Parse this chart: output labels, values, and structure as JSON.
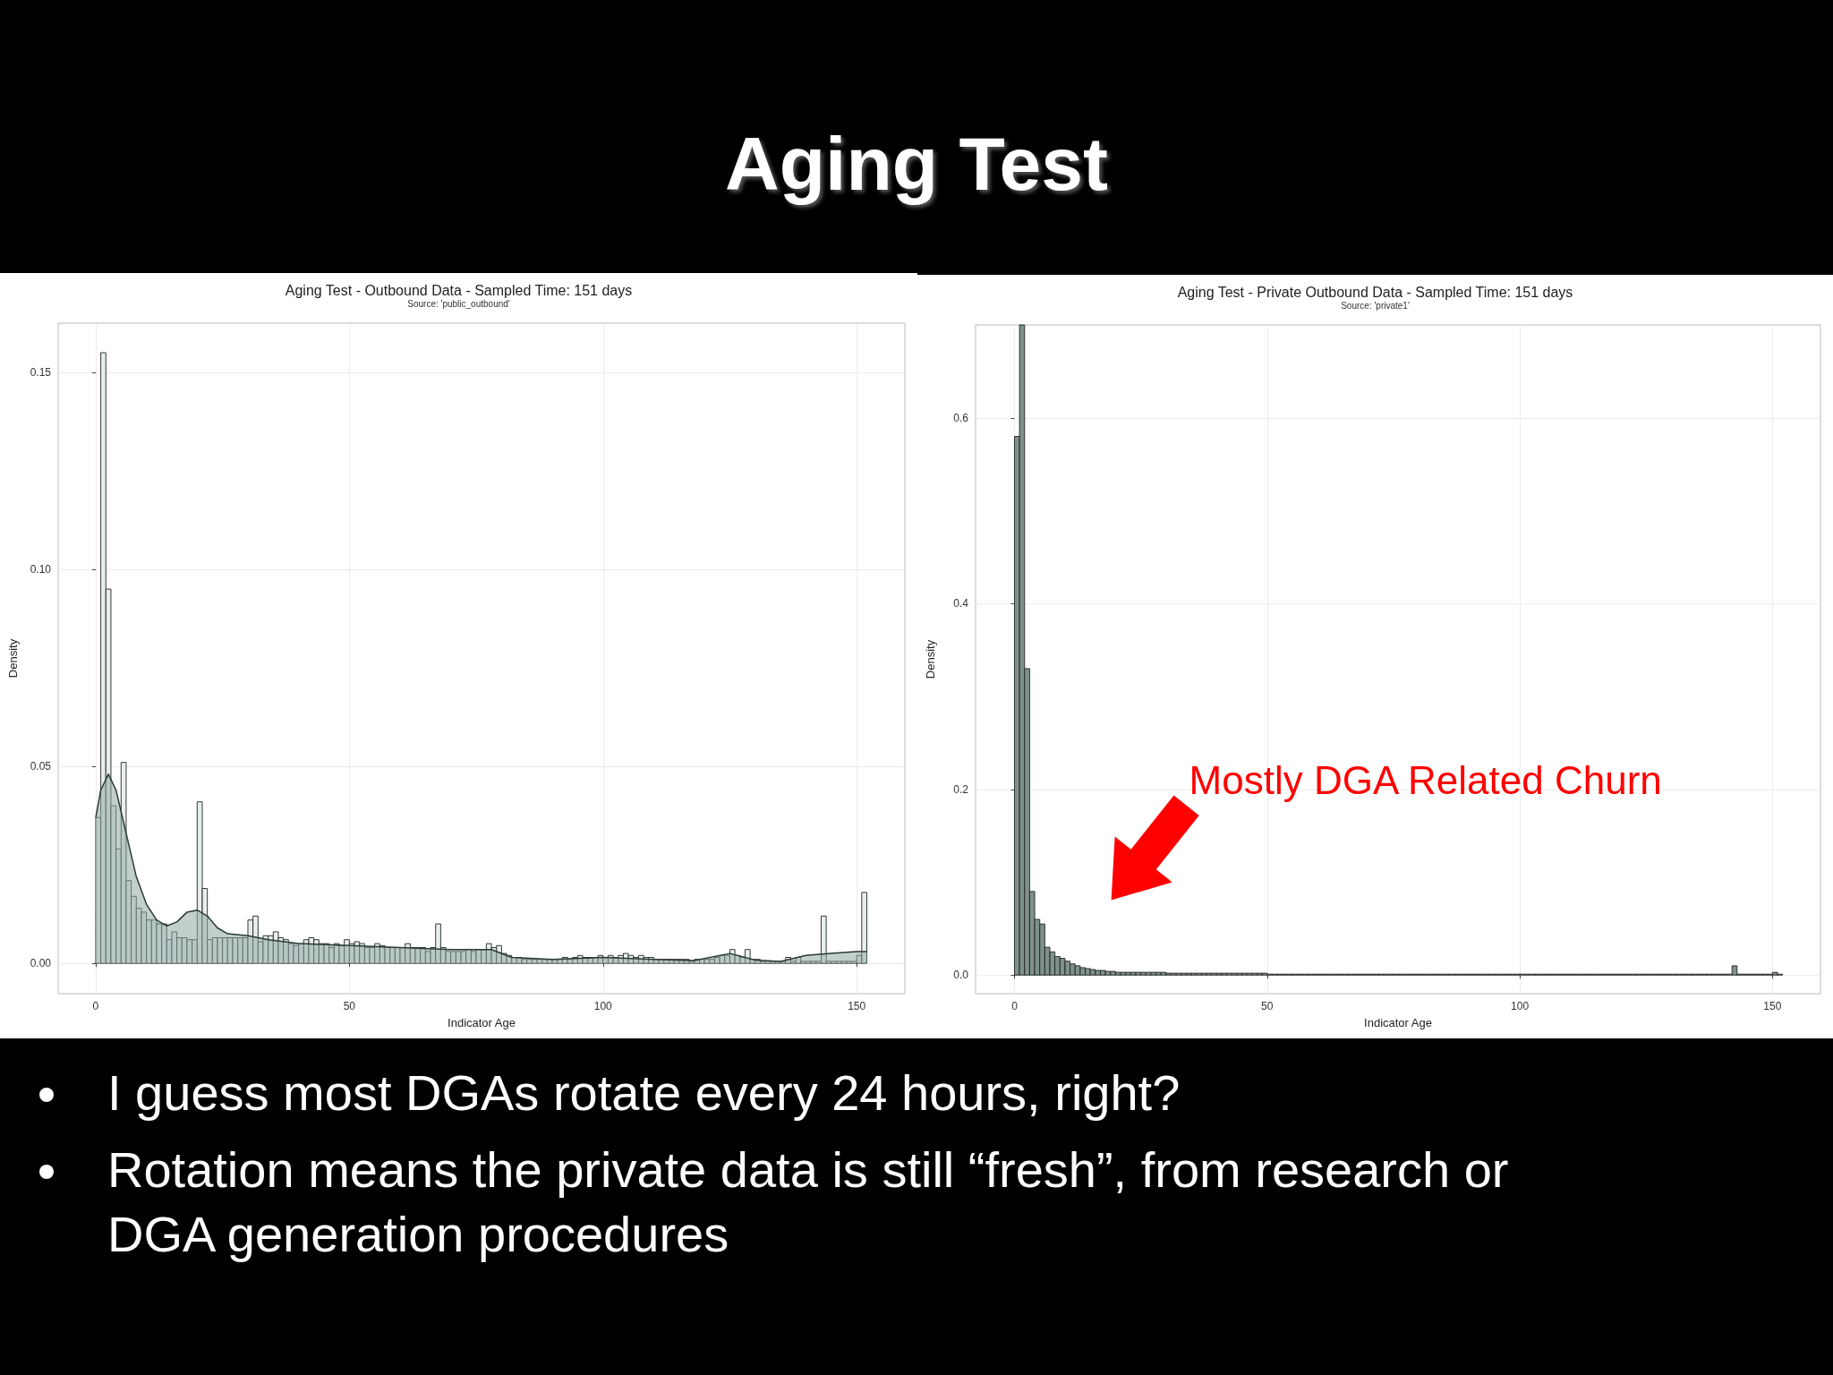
{
  "chart_data": [
    {
      "type": "other",
      "title": "Aging Test"
    },
    {
      "type": "histogram",
      "title": "Aging Test - Outbound Data - Sampled Time: 151 days",
      "subtitle": "Source: 'public_outbound'",
      "xlabel": "Indicator Age",
      "ylabel": "Density",
      "bins": [
        0,
        1,
        2,
        3,
        4,
        5,
        6,
        7,
        8,
        9,
        10,
        11,
        12,
        13,
        14,
        15,
        16,
        17,
        18,
        19,
        20,
        21,
        22,
        23,
        24,
        25,
        26,
        27,
        28,
        29,
        30,
        31,
        32,
        33,
        34,
        35,
        36,
        37,
        38,
        39,
        40,
        41,
        42,
        43,
        44,
        45,
        46,
        47,
        48,
        49,
        50,
        51,
        52,
        53,
        54,
        55,
        56,
        57,
        58,
        59,
        60,
        61,
        62,
        63,
        64,
        65,
        66,
        67,
        68,
        69,
        70,
        71,
        72,
        73,
        74,
        75,
        76,
        77,
        78,
        79,
        80,
        81,
        82,
        83,
        84,
        85,
        86,
        87,
        88,
        89,
        90,
        91,
        92,
        93,
        94,
        95,
        96,
        97,
        98,
        99,
        100,
        101,
        102,
        103,
        104,
        105,
        106,
        107,
        108,
        109,
        110,
        111,
        112,
        113,
        114,
        115,
        116,
        117,
        118,
        119,
        120,
        121,
        122,
        123,
        124,
        125,
        126,
        127,
        128,
        129,
        130,
        131,
        132,
        133,
        134,
        135,
        136,
        137,
        138,
        139,
        140,
        141,
        142,
        143,
        144,
        145,
        146,
        147,
        148,
        149,
        150,
        151,
        152
      ],
      "series": [
        {
          "type": "histogram",
          "color": "#e9efee",
          "values": [
            0.037,
            0.155,
            0.095,
            0.04,
            0.029,
            0.051,
            0.021,
            0.017,
            0.014,
            0.013,
            0.011,
            0.011,
            0.01,
            0.01,
            0.006,
            0.008,
            0.0065,
            0.0065,
            0.006,
            0.006,
            0.041,
            0.019,
            0.006,
            0.0065,
            0.0065,
            0.0065,
            0.0065,
            0.0065,
            0.0065,
            0.0065,
            0.011,
            0.012,
            0.0055,
            0.007,
            0.007,
            0.008,
            0.0065,
            0.006,
            0.005,
            0.0045,
            0.005,
            0.006,
            0.0065,
            0.006,
            0.005,
            0.005,
            0.004,
            0.005,
            0.0045,
            0.006,
            0.005,
            0.0055,
            0.005,
            0.004,
            0.004,
            0.005,
            0.0045,
            0.004,
            0.004,
            0.004,
            0.004,
            0.005,
            0.004,
            0.004,
            0.004,
            0.003,
            0.004,
            0.01,
            0.004,
            0.003,
            0.003,
            0.003,
            0.003,
            0.0035,
            0.003,
            0.0035,
            0.0035,
            0.005,
            0.004,
            0.0045,
            0.0025,
            0.002,
            0.0015,
            0.0015,
            0.001,
            0.001,
            0.001,
            0.001,
            0.001,
            0.001,
            0.001,
            0.001,
            0.0015,
            0.001,
            0.0015,
            0.002,
            0.0015,
            0.0015,
            0.0015,
            0.002,
            0.0015,
            0.002,
            0.0015,
            0.002,
            0.0025,
            0.002,
            0.0015,
            0.002,
            0.0015,
            0.0015,
            0.001,
            0.001,
            0.001,
            0.001,
            0.001,
            0.001,
            0.001,
            0.0005,
            0.001,
            0.001,
            0.001,
            0.001,
            0.0015,
            0.002,
            0.002,
            0.0035,
            0.002,
            0.0015,
            0.0035,
            0.001,
            0.001,
            0.0005,
            0.0005,
            0.0005,
            0.0005,
            0.0005,
            0.0015,
            0.0005,
            0.0015,
            0.0005,
            0.0005,
            0.0005,
            0.0005,
            0.012,
            0.0005,
            0.0005,
            0.0005,
            0.0005,
            0.0005,
            0.0005,
            0.002,
            0.018
          ]
        },
        {
          "type": "area",
          "color": "#8fa8a4",
          "x": [
            0,
            1,
            2.5,
            4,
            6,
            8,
            10,
            12,
            14,
            16,
            18,
            20,
            22,
            24,
            26,
            30,
            34,
            40,
            50,
            60,
            70,
            78,
            82,
            90,
            100,
            110,
            118,
            125,
            130,
            135,
            140,
            145,
            150,
            152
          ],
          "values": [
            0.037,
            0.044,
            0.048,
            0.044,
            0.033,
            0.022,
            0.015,
            0.011,
            0.0095,
            0.0105,
            0.013,
            0.0135,
            0.012,
            0.009,
            0.0075,
            0.007,
            0.006,
            0.005,
            0.0045,
            0.004,
            0.0035,
            0.0035,
            0.0015,
            0.001,
            0.0015,
            0.001,
            0.0007,
            0.0025,
            0.0008,
            0.0005,
            0.002,
            0.0025,
            0.003,
            0.003
          ]
        }
      ],
      "xlim": [
        -7.4,
        159.5
      ],
      "xticks": [
        0,
        50,
        100,
        150
      ],
      "ylim": [
        -0.0077,
        0.1625
      ],
      "yticks": [
        {
          "value": 0,
          "label": "0.00"
        },
        {
          "value": 0.05,
          "label": "0.05"
        },
        {
          "value": 0.1,
          "label": "0.10"
        },
        {
          "value": 0.15,
          "label": "0.15"
        }
      ],
      "grid": true
    },
    {
      "type": "histogram",
      "title": "Aging Test - Private Outbound Data - Sampled Time: 151 days",
      "subtitle": "Source: 'private1'",
      "xlabel": "Indicator Age",
      "ylabel": "Density",
      "bins": [
        0,
        1,
        2,
        3,
        4,
        5,
        6,
        7,
        8,
        9,
        10,
        11,
        12,
        13,
        14,
        15,
        16,
        17,
        18,
        19,
        20,
        21,
        22,
        23,
        24,
        25,
        26,
        27,
        28,
        29,
        30,
        31,
        32,
        33,
        34,
        35,
        36,
        37,
        38,
        39,
        40,
        41,
        42,
        43,
        44,
        45,
        46,
        47,
        48,
        49,
        50,
        51,
        52,
        53,
        54,
        55,
        56,
        57,
        58,
        59,
        60,
        61,
        62,
        63,
        64,
        65,
        66,
        67,
        68,
        69,
        70,
        71,
        72,
        73,
        74,
        75,
        76,
        77,
        78,
        79,
        80,
        81,
        82,
        83,
        84,
        85,
        86,
        87,
        88,
        89,
        90,
        91,
        92,
        93,
        94,
        95,
        96,
        97,
        98,
        99,
        100,
        101,
        102,
        103,
        104,
        105,
        106,
        107,
        108,
        109,
        110,
        111,
        112,
        113,
        114,
        115,
        116,
        117,
        118,
        119,
        120,
        121,
        122,
        123,
        124,
        125,
        126,
        127,
        128,
        129,
        130,
        131,
        132,
        133,
        134,
        135,
        136,
        137,
        138,
        139,
        140,
        141,
        142,
        143,
        144,
        145,
        146,
        147,
        148,
        149,
        150,
        151,
        152
      ],
      "series": [
        {
          "type": "histogram",
          "color": "#7f918d",
          "values": [
            0.58,
            0.7,
            0.33,
            0.09,
            0.06,
            0.055,
            0.03,
            0.025,
            0.02,
            0.018,
            0.015,
            0.012,
            0.01,
            0.008,
            0.007,
            0.006,
            0.005,
            0.005,
            0.004,
            0.004,
            0.003,
            0.003,
            0.003,
            0.003,
            0.003,
            0.003,
            0.003,
            0.003,
            0.003,
            0.003,
            0.002,
            0.002,
            0.002,
            0.002,
            0.002,
            0.002,
            0.002,
            0.002,
            0.002,
            0.002,
            0.002,
            0.002,
            0.002,
            0.002,
            0.002,
            0.002,
            0.002,
            0.002,
            0.002,
            0.002,
            0.001,
            0.001,
            0.001,
            0.001,
            0.001,
            0.001,
            0.001,
            0.001,
            0.001,
            0.001,
            0.001,
            0.001,
            0.001,
            0.001,
            0.001,
            0.001,
            0.001,
            0.001,
            0.001,
            0.001,
            0.001,
            0.001,
            0.001,
            0.001,
            0.001,
            0.001,
            0.001,
            0.001,
            0.001,
            0.001,
            0.001,
            0.001,
            0.001,
            0.001,
            0.001,
            0.001,
            0.001,
            0.001,
            0.001,
            0.001,
            0.001,
            0.001,
            0.001,
            0.001,
            0.001,
            0.001,
            0.001,
            0.001,
            0.001,
            0.001,
            0.001,
            0.001,
            0.001,
            0.001,
            0.001,
            0.001,
            0.001,
            0.001,
            0.001,
            0.001,
            0.001,
            0.001,
            0.001,
            0.001,
            0.001,
            0.001,
            0.001,
            0.001,
            0.001,
            0.001,
            0.001,
            0.001,
            0.001,
            0.001,
            0.001,
            0.001,
            0.001,
            0.001,
            0.001,
            0.001,
            0.001,
            0.001,
            0.001,
            0.001,
            0.001,
            0.001,
            0.001,
            0.001,
            0.001,
            0.001,
            0.001,
            0.001,
            0.01,
            0.001,
            0.001,
            0.001,
            0.001,
            0.001,
            0.001,
            0.001,
            0.003,
            0.001
          ]
        }
      ],
      "xlim": [
        -7.7,
        159.5
      ],
      "xticks": [
        0,
        50,
        100,
        150
      ],
      "ylim": [
        -0.02,
        0.7
      ],
      "yticks": [
        {
          "value": 0,
          "label": "0.0"
        },
        {
          "value": 0.2,
          "label": "0.2"
        },
        {
          "value": 0.4,
          "label": "0.4"
        },
        {
          "value": 0.6,
          "label": "0.6"
        }
      ],
      "grid": true,
      "annotations": [
        "Mostly DGA Related Churn"
      ]
    },
    {
      "type": "other",
      "annotations": [
        "I guess most DGAs rotate every 24 hours, right?",
        "Rotation means the private data is still “fresh”, from research or DGA generation procedures"
      ]
    }
  ]
}
